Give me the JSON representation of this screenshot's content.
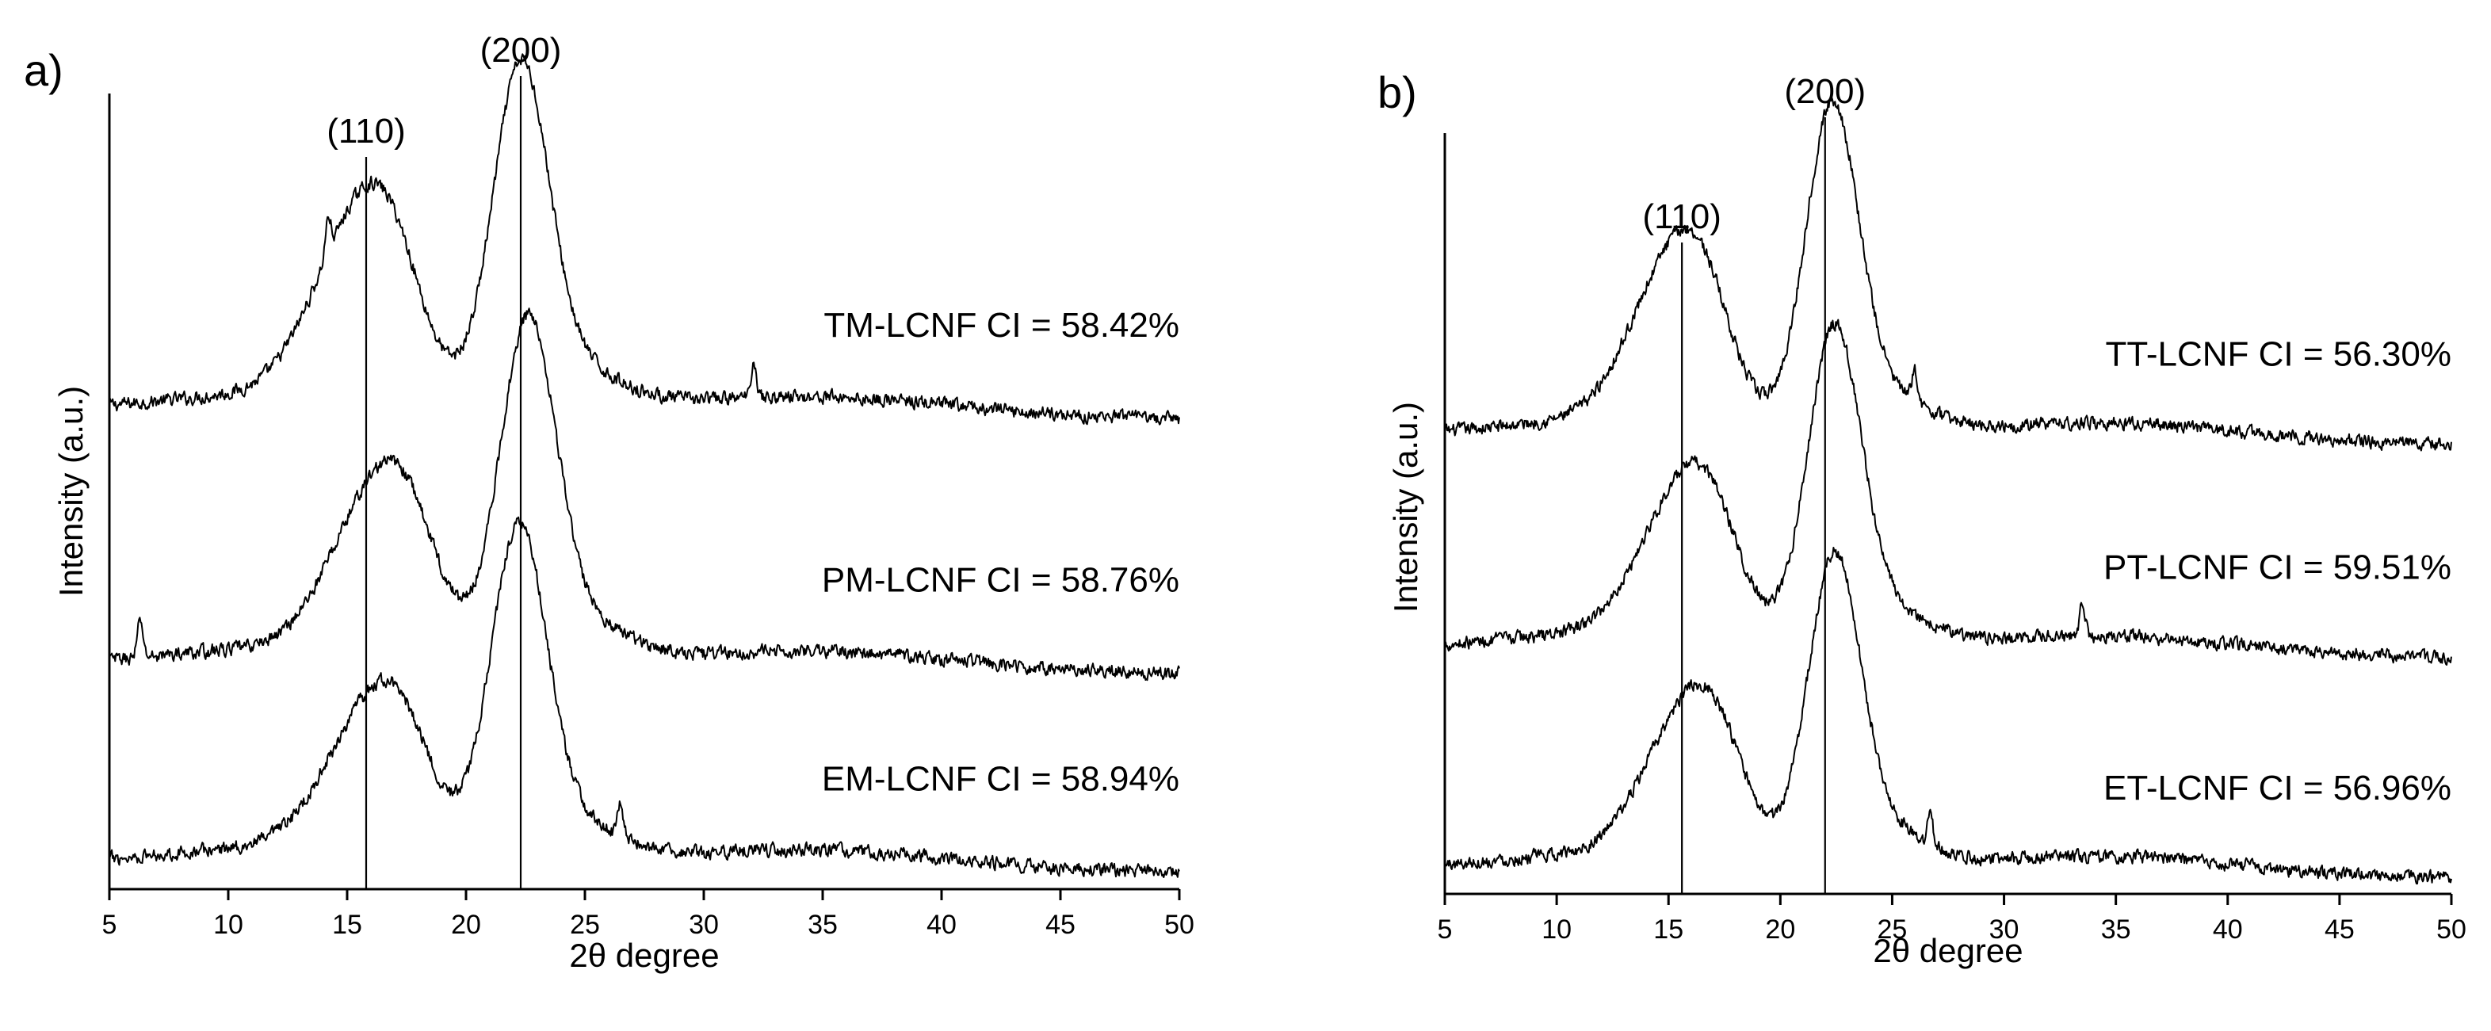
{
  "chart_data": [
    {
      "type": "line",
      "panel_label": "a)",
      "xlabel": "2θ degree",
      "ylabel": "Intensity (a.u.)",
      "xlim": [
        5,
        50
      ],
      "ylim": [
        0,
        100
      ],
      "xticks": [
        "5",
        "10",
        "15",
        "20",
        "25",
        "30",
        "35",
        "40",
        "45",
        "50"
      ],
      "yticks_shown": false,
      "peak_markers": [
        {
          "label": "(110)",
          "x": 15.8
        },
        {
          "label": "(200)",
          "x": 22.3
        }
      ],
      "series": [
        {
          "name": "TM-LCNF",
          "label": "TM-LCNF CI = 58.42%",
          "baseline": 59,
          "peaks": {
            "p110": {
              "x": 15.3,
              "h": 20
            },
            "p200": {
              "x": 22.3,
              "h": 38
            }
          },
          "sharp": [
            14.2,
            32.1
          ]
        },
        {
          "name": "PM-LCNF",
          "label": "PM-LCNF CI = 58.76%",
          "baseline": 27,
          "peaks": {
            "p110": {
              "x": 16.0,
              "h": 18
            },
            "p200": {
              "x": 22.6,
              "h": 38
            }
          },
          "sharp": [
            6.3
          ]
        },
        {
          "name": "EM-LCNF",
          "label": "EM-LCNF CI = 58.94%",
          "baseline": 2,
          "peaks": {
            "p110": {
              "x": 15.8,
              "h": 16
            },
            "p200": {
              "x": 22.2,
              "h": 37
            }
          },
          "sharp": [
            26.5
          ]
        }
      ]
    },
    {
      "type": "line",
      "panel_label": "b)",
      "xlabel": "2θ degree",
      "ylabel": "Intensity (a.u.)",
      "xlim": [
        5,
        50
      ],
      "ylim": [
        0,
        100
      ],
      "xticks": [
        "5",
        "10",
        "15",
        "20",
        "25",
        "30",
        "35",
        "40",
        "45",
        "50"
      ],
      "yticks_shown": false,
      "peak_markers": [
        {
          "label": "(110)",
          "x": 15.6
        },
        {
          "label": "(200)",
          "x": 22.0
        }
      ],
      "series": [
        {
          "name": "TT-LCNF",
          "label": "TT-LCNF CI = 56.30%",
          "baseline": 59,
          "peaks": {
            "p110": {
              "x": 15.0,
              "h": 19
            },
            "p200": {
              "x": 22.3,
              "h": 38
            }
          },
          "sharp": [
            26.0
          ]
        },
        {
          "name": "PT-LCNF",
          "label": "PT-LCNF CI = 59.51%",
          "baseline": 31,
          "peaks": {
            "p110": {
              "x": 15.4,
              "h": 17
            },
            "p200": {
              "x": 22.4,
              "h": 37
            }
          },
          "sharp": [
            33.5
          ]
        },
        {
          "name": "ET-LCNF",
          "label": "ET-LCNF CI = 56.96%",
          "baseline": 2,
          "peaks": {
            "p110": {
              "x": 15.6,
              "h": 17
            },
            "p200": {
              "x": 22.4,
              "h": 36
            }
          },
          "sharp": [
            26.7
          ]
        }
      ]
    }
  ]
}
